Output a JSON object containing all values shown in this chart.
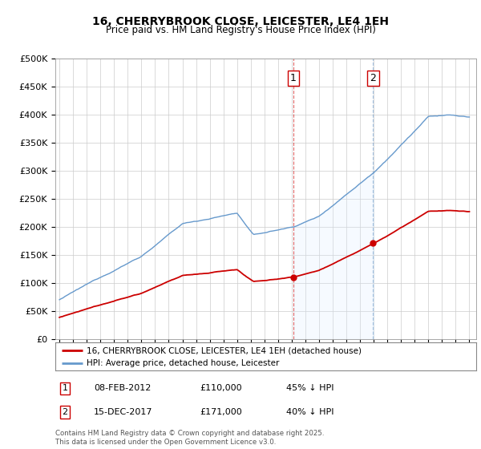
{
  "title": "16, CHERRYBROOK CLOSE, LEICESTER, LE4 1EH",
  "subtitle": "Price paid vs. HM Land Registry's House Price Index (HPI)",
  "ylabel_ticks": [
    "£0",
    "£50K",
    "£100K",
    "£150K",
    "£200K",
    "£250K",
    "£300K",
    "£350K",
    "£400K",
    "£450K",
    "£500K"
  ],
  "ytick_vals": [
    0,
    50000,
    100000,
    150000,
    200000,
    250000,
    300000,
    350000,
    400000,
    450000,
    500000
  ],
  "sale1_date": 2012.1,
  "sale1_price": 110000,
  "sale2_date": 2017.96,
  "sale2_price": 171000,
  "hpi_color": "#6699cc",
  "hpi_fill_color": "#ddeeff",
  "price_color": "#cc0000",
  "background_color": "#ffffff",
  "grid_color": "#cccccc",
  "legend_label_price": "16, CHERRYBROOK CLOSE, LEICESTER, LE4 1EH (detached house)",
  "legend_label_hpi": "HPI: Average price, detached house, Leicester",
  "table_row1": [
    "1",
    "08-FEB-2012",
    "£110,000",
    "45% ↓ HPI"
  ],
  "table_row2": [
    "2",
    "15-DEC-2017",
    "£171,000",
    "40% ↓ HPI"
  ],
  "footnote": "Contains HM Land Registry data © Crown copyright and database right 2025.\nThis data is licensed under the Open Government Licence v3.0."
}
